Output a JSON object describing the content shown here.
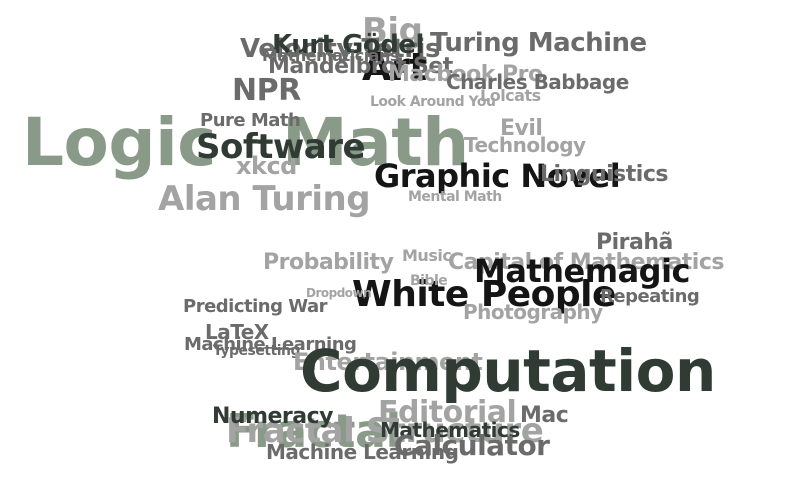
{
  "palette": {
    "dark": "#2f3b33",
    "black": "#151515",
    "mid": "#6b6b6b",
    "light": "#a3a3a3",
    "sage": "#8a9a88"
  },
  "words": [
    {
      "text": "Big",
      "color": "light"
    },
    {
      "text": "Turing Machine",
      "color": "mid"
    },
    {
      "text": "Velocity Tetris",
      "color": "mid"
    },
    {
      "text": "Kurt Gödel",
      "color": "dark"
    },
    {
      "text": "Art",
      "color": "black"
    },
    {
      "text": "Mandelbrot Set",
      "color": "mid"
    },
    {
      "text": "Macbook Pro",
      "color": "light"
    },
    {
      "text": "Mathematicians",
      "color": "mid"
    },
    {
      "text": "NPR",
      "color": "mid"
    },
    {
      "text": "Charles Babbage",
      "color": "mid"
    },
    {
      "text": "Lolcats",
      "color": "light"
    },
    {
      "text": "Look Around You",
      "color": "light"
    },
    {
      "text": "Logic",
      "color": "sage"
    },
    {
      "text": "Math",
      "color": "sage"
    },
    {
      "text": "Pure Math",
      "color": "mid"
    },
    {
      "text": "xkcd",
      "color": "light"
    },
    {
      "text": "Software",
      "color": "dark"
    },
    {
      "text": "Evil",
      "color": "light"
    },
    {
      "text": "Technology",
      "color": "light"
    },
    {
      "text": "Graphic Novel",
      "color": "black"
    },
    {
      "text": "Linguistics",
      "color": "mid"
    },
    {
      "text": "Alan Turing",
      "color": "light"
    },
    {
      "text": "Mental Math",
      "color": "light"
    },
    {
      "text": "Pirahã",
      "color": "mid"
    },
    {
      "text": "Capital of Mathematics",
      "color": "light"
    },
    {
      "text": "Music",
      "color": "light"
    },
    {
      "text": "Probability",
      "color": "light"
    },
    {
      "text": "Mathemagic",
      "color": "black"
    },
    {
      "text": "White People",
      "color": "black"
    },
    {
      "text": "Dropdown",
      "color": "light"
    },
    {
      "text": "Bible",
      "color": "light"
    },
    {
      "text": "Repeating",
      "color": "mid"
    },
    {
      "text": "Predicting War",
      "color": "mid"
    },
    {
      "text": "Photography",
      "color": "light"
    },
    {
      "text": "LaTeX",
      "color": "mid"
    },
    {
      "text": "Machine Learning",
      "color": "mid"
    },
    {
      "text": "Typesetting",
      "color": "mid"
    },
    {
      "text": "Entertainment",
      "color": "light"
    },
    {
      "text": "Computation",
      "color": "dark"
    },
    {
      "text": "Fractal",
      "color": "sage"
    },
    {
      "text": "Fractal Structure",
      "color": "light"
    },
    {
      "text": "Numeracy",
      "color": "dark"
    },
    {
      "text": "Editorial",
      "color": "light"
    },
    {
      "text": "Mac",
      "color": "mid"
    },
    {
      "text": "Mathematics",
      "color": "dark"
    },
    {
      "text": "Calculator",
      "color": "mid"
    },
    {
      "text": "Machine Learning",
      "color": "mid"
    }
  ]
}
